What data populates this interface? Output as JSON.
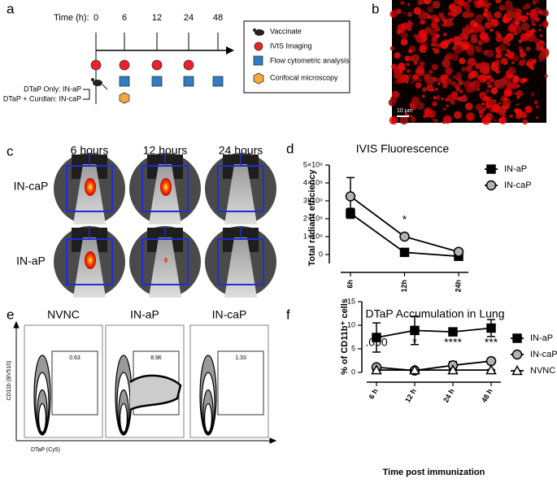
{
  "panels": [
    "a",
    "b",
    "c",
    "d",
    "e",
    "f"
  ],
  "panel_a": {
    "time_label": "Time (h):",
    "times": [
      0,
      6,
      12,
      24,
      48
    ],
    "legend": [
      "Vaccinate",
      "IVIS Imaging",
      "Flow cytometric analysis",
      "Confocal microscopy"
    ],
    "groups": [
      "DTaP Only: IN-aP",
      "DTaP + Curdlan: IN-caP"
    ]
  },
  "panel_b": {
    "scale_bar": "10 µm"
  },
  "panel_c": {
    "columns": [
      "6 hours",
      "12 hours",
      "24 hours"
    ],
    "rows": [
      "IN-caP",
      "IN-aP"
    ]
  },
  "panel_e": {
    "titles": [
      "NVNC",
      "IN-aP",
      "IN-caP"
    ],
    "gates": [
      "0.63",
      "8.96",
      "1.33"
    ],
    "y_label": "CD11b (BV510)",
    "x_label": "DTaP (Cy5)"
  },
  "chart_data": [
    {
      "type": "line",
      "title": "IVIS Fluorescence",
      "y_label": "Total radiant efficiency",
      "categories": [
        "6h",
        "12h",
        "24h"
      ],
      "series": [
        {
          "name": "IN-aP",
          "color": "#000000",
          "marker": "square",
          "values": [
            2300000000,
            120000000,
            -100000000
          ],
          "errors": [
            280000000,
            50000000,
            50000000
          ]
        },
        {
          "name": "IN-caP",
          "color": "#b3b3b3",
          "marker": "circle",
          "values": [
            3250000000,
            1000000000,
            150000000
          ],
          "errors": [
            1050000000,
            100000000,
            80000000
          ]
        }
      ],
      "annotations": [
        null,
        "*",
        null
      ],
      "ylim": [
        -500000000,
        5000000000
      ],
      "yticks": [
        0,
        {
          "value": 1000000000,
          "label": "1×10⁹"
        },
        {
          "value": 2000000000,
          "label": "2×10⁹"
        },
        {
          "value": 3000000000,
          "label": "3×10⁹"
        },
        {
          "value": 4000000000,
          "label": "4×10⁹"
        },
        {
          "value": 5000000000,
          "label": "5×10⁹"
        }
      ],
      "legend": "right"
    },
    {
      "type": "line",
      "title": "DTaP Accumulation in Lung",
      "y_label": "% of CD11b⁺ cells",
      "x_label": "Time post immunization",
      "categories": [
        "6 h",
        "12 h",
        "24 h",
        "48 h"
      ],
      "series": [
        {
          "name": "IN-aP",
          "color": "#000000",
          "marker": "square",
          "values": [
            7.4,
            8.9,
            8.6,
            9.4
          ],
          "errors": [
            3.1,
            3.0,
            0.7,
            1.8
          ]
        },
        {
          "name": "IN-caP",
          "color": "#b3b3b3",
          "marker": "circle",
          "values": [
            1.1,
            0.4,
            1.5,
            2.4
          ],
          "errors": [
            0.3,
            0.2,
            0.8,
            0.3
          ]
        },
        {
          "name": "NVNC",
          "color": "#ffffff",
          "marker": "triangle",
          "values": [
            0.5,
            0.5,
            0.5,
            0.5
          ],
          "errors": [
            0.1,
            0.1,
            0.1,
            0.1
          ]
        }
      ],
      "annotations": [
        ".050",
        "*",
        "****",
        "***"
      ],
      "ylim": [
        0,
        15
      ],
      "yticks": [
        0,
        5,
        10,
        15
      ],
      "legend": "right"
    }
  ]
}
